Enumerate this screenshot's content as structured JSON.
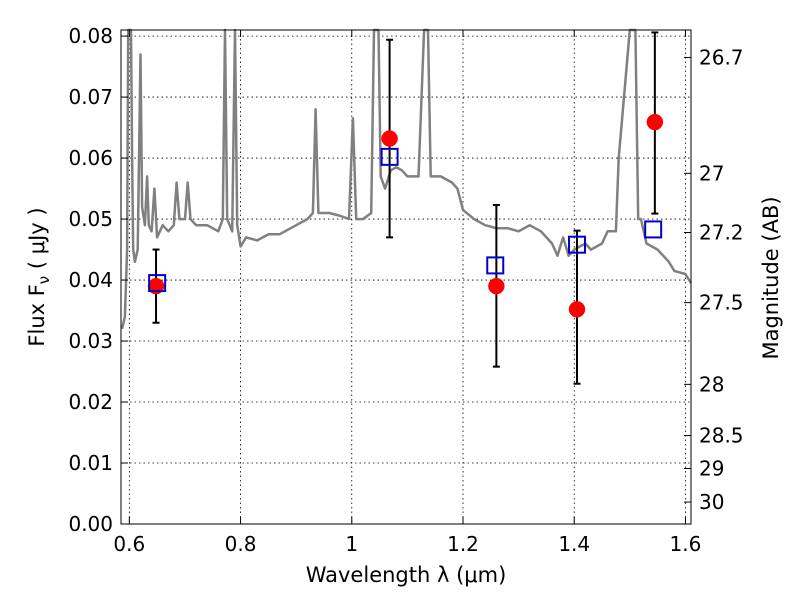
{
  "chart_data": {
    "type": "scatter",
    "xlabel": "Wavelength  λ (μm)",
    "ylabel": "Flux  F",
    "ylabel_sub": "ν",
    "ylabel_unit": "  ( μJy )",
    "ylabel_right": "Magnitude (AB)",
    "xlim": [
      0.585,
      1.61
    ],
    "ylim": [
      0.0,
      0.081
    ],
    "x_ticks": [
      0.6,
      0.8,
      1.0,
      1.2,
      1.4,
      1.6
    ],
    "x_tick_labels": [
      "0.6",
      "0.8",
      "1",
      "1.2",
      "1.4",
      "1.6"
    ],
    "y_ticks": [
      0.0,
      0.01,
      0.02,
      0.03,
      0.04,
      0.05,
      0.06,
      0.07,
      0.08
    ],
    "y_tick_labels": [
      "0.00",
      "0.01",
      "0.02",
      "0.03",
      "0.04",
      "0.05",
      "0.06",
      "0.07",
      "0.08"
    ],
    "right_ticks": [
      {
        "label": "26.7",
        "flux": 0.0765
      },
      {
        "label": "27",
        "flux": 0.0575
      },
      {
        "label": "27.2",
        "flux": 0.0478
      },
      {
        "label": "27.5",
        "flux": 0.0363
      },
      {
        "label": "28",
        "flux": 0.0229
      },
      {
        "label": "28.5",
        "flux": 0.0145
      },
      {
        "label": "29",
        "flux": 0.0091
      },
      {
        "label": "30",
        "flux": 0.0036
      }
    ],
    "grid": true,
    "series": [
      {
        "marker": "circle",
        "color": "#ff0000",
        "points": [
          {
            "x": 0.648,
            "y": 0.039,
            "yerr_low": 0.033,
            "yerr_high": 0.045
          },
          {
            "x": 1.068,
            "y": 0.0632,
            "yerr_low": 0.047,
            "yerr_high": 0.0794
          },
          {
            "x": 1.26,
            "y": 0.039,
            "yerr_low": 0.0258,
            "yerr_high": 0.0523
          },
          {
            "x": 1.405,
            "y": 0.0352,
            "yerr_low": 0.023,
            "yerr_high": 0.0481
          },
          {
            "x": 1.545,
            "y": 0.0659,
            "yerr_low": 0.0509,
            "yerr_high": 0.0806
          }
        ]
      },
      {
        "marker": "open-square",
        "color": "#0000cc",
        "points": [
          {
            "x": 0.65,
            "y": 0.0395
          },
          {
            "x": 1.068,
            "y": 0.0602
          },
          {
            "x": 1.258,
            "y": 0.0424
          },
          {
            "x": 1.405,
            "y": 0.0458
          },
          {
            "x": 1.542,
            "y": 0.0483
          }
        ]
      },
      {
        "marker": "line",
        "color": "#808080",
        "points": [
          [
            0.587,
            0.032
          ],
          [
            0.592,
            0.034
          ],
          [
            0.596,
            0.045
          ],
          [
            0.598,
            0.081
          ],
          [
            0.603,
            0.081
          ],
          [
            0.605,
            0.06
          ],
          [
            0.607,
            0.045
          ],
          [
            0.61,
            0.043
          ],
          [
            0.615,
            0.045
          ],
          [
            0.62,
            0.077
          ],
          [
            0.623,
            0.052
          ],
          [
            0.628,
            0.049
          ],
          [
            0.632,
            0.057
          ],
          [
            0.635,
            0.049
          ],
          [
            0.64,
            0.048
          ],
          [
            0.645,
            0.055
          ],
          [
            0.65,
            0.047
          ],
          [
            0.66,
            0.049
          ],
          [
            0.67,
            0.048
          ],
          [
            0.68,
            0.049
          ],
          [
            0.685,
            0.056
          ],
          [
            0.69,
            0.05
          ],
          [
            0.7,
            0.05
          ],
          [
            0.705,
            0.056
          ],
          [
            0.71,
            0.05
          ],
          [
            0.72,
            0.049
          ],
          [
            0.74,
            0.049
          ],
          [
            0.76,
            0.048
          ],
          [
            0.768,
            0.05
          ],
          [
            0.772,
            0.081
          ],
          [
            0.776,
            0.05
          ],
          [
            0.785,
            0.048
          ],
          [
            0.79,
            0.081
          ],
          [
            0.794,
            0.049
          ],
          [
            0.8,
            0.0455
          ],
          [
            0.81,
            0.047
          ],
          [
            0.83,
            0.0465
          ],
          [
            0.85,
            0.0475
          ],
          [
            0.87,
            0.0475
          ],
          [
            0.9,
            0.049
          ],
          [
            0.92,
            0.05
          ],
          [
            0.93,
            0.051
          ],
          [
            0.935,
            0.068
          ],
          [
            0.94,
            0.051
          ],
          [
            0.96,
            0.051
          ],
          [
            0.98,
            0.0505
          ],
          [
            0.995,
            0.05
          ],
          [
            1.002,
            0.0665
          ],
          [
            1.008,
            0.05
          ],
          [
            1.02,
            0.05
          ],
          [
            1.035,
            0.051
          ],
          [
            1.04,
            0.081
          ],
          [
            1.048,
            0.081
          ],
          [
            1.052,
            0.057
          ],
          [
            1.06,
            0.055
          ],
          [
            1.07,
            0.058
          ],
          [
            1.08,
            0.0585
          ],
          [
            1.09,
            0.058
          ],
          [
            1.1,
            0.057
          ],
          [
            1.11,
            0.057
          ],
          [
            1.12,
            0.057
          ],
          [
            1.13,
            0.081
          ],
          [
            1.137,
            0.081
          ],
          [
            1.142,
            0.057
          ],
          [
            1.16,
            0.057
          ],
          [
            1.18,
            0.056
          ],
          [
            1.19,
            0.055
          ],
          [
            1.2,
            0.0515
          ],
          [
            1.22,
            0.05
          ],
          [
            1.24,
            0.049
          ],
          [
            1.26,
            0.0485
          ],
          [
            1.28,
            0.0485
          ],
          [
            1.3,
            0.048
          ],
          [
            1.32,
            0.049
          ],
          [
            1.34,
            0.048
          ],
          [
            1.36,
            0.046
          ],
          [
            1.37,
            0.044
          ],
          [
            1.38,
            0.047
          ],
          [
            1.39,
            0.044
          ],
          [
            1.4,
            0.045
          ],
          [
            1.42,
            0.046
          ],
          [
            1.43,
            0.045
          ],
          [
            1.45,
            0.046
          ],
          [
            1.46,
            0.048
          ],
          [
            1.475,
            0.048
          ],
          [
            1.48,
            0.06
          ],
          [
            1.5,
            0.081
          ],
          [
            1.51,
            0.081
          ],
          [
            1.515,
            0.05
          ],
          [
            1.52,
            0.05
          ],
          [
            1.53,
            0.046
          ],
          [
            1.55,
            0.045
          ],
          [
            1.56,
            0.044
          ],
          [
            1.57,
            0.043
          ],
          [
            1.58,
            0.0415
          ],
          [
            1.6,
            0.041
          ],
          [
            1.61,
            0.0395
          ]
        ]
      }
    ]
  }
}
